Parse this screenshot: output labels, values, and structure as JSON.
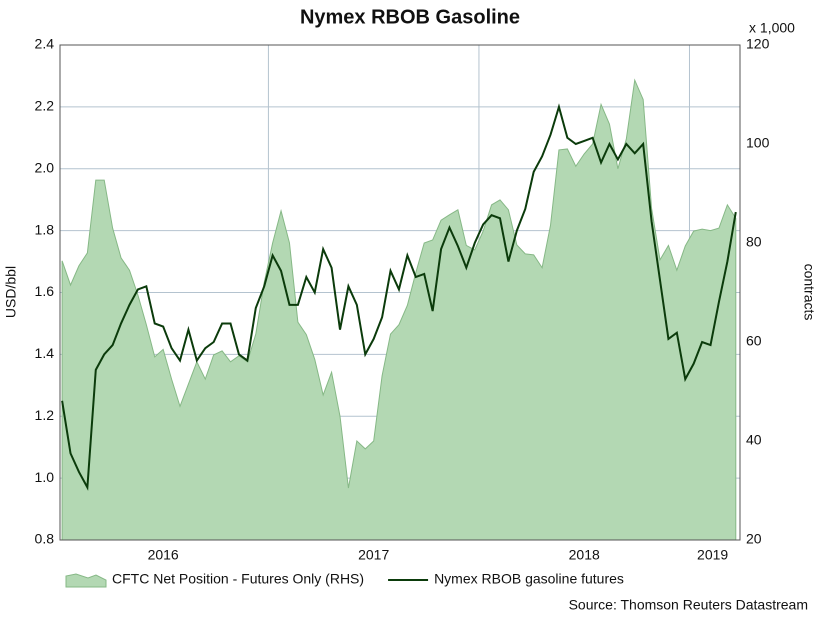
{
  "chart_data": {
    "type": "line",
    "title": "Nymex RBOB Gasoline",
    "ylabel": "USD/bbl",
    "y2label": "contracts",
    "y2unit": "x 1,000",
    "source": "Source: Thomson Reuters Datastream",
    "x": [
      2016.02,
      2016.06,
      2016.1,
      2016.14,
      2016.18,
      2016.22,
      2016.26,
      2016.3,
      2016.34,
      2016.38,
      2016.42,
      2016.46,
      2016.5,
      2016.54,
      2016.58,
      2016.62,
      2016.66,
      2016.7,
      2016.74,
      2016.78,
      2016.82,
      2016.86,
      2016.9,
      2016.94,
      2016.98,
      2017.02,
      2017.06,
      2017.1,
      2017.14,
      2017.18,
      2017.22,
      2017.26,
      2017.3,
      2017.34,
      2017.38,
      2017.42,
      2017.46,
      2017.5,
      2017.54,
      2017.58,
      2017.62,
      2017.66,
      2017.7,
      2017.74,
      2017.78,
      2017.82,
      2017.86,
      2017.9,
      2017.94,
      2017.98,
      2018.02,
      2018.06,
      2018.1,
      2018.14,
      2018.18,
      2018.22,
      2018.26,
      2018.3,
      2018.34,
      2018.38,
      2018.42,
      2018.46,
      2018.5,
      2018.54,
      2018.58,
      2018.62,
      2018.66,
      2018.7,
      2018.74,
      2018.78,
      2018.82,
      2018.86,
      2018.9,
      2018.94,
      2018.98,
      2019.02,
      2019.06,
      2019.1,
      2019.14,
      2019.18,
      2019.22
    ],
    "series": [
      {
        "name": "CFTC Net Position - Futures Only (RHS)",
        "type": "area",
        "axis": "y2",
        "color": "#b3d8b3",
        "edge": "#86b886",
        "values": [
          76.4,
          71.5,
          75.4,
          78,
          92.7,
          92.7,
          83,
          77,
          74.5,
          69.5,
          63.5,
          57,
          58.5,
          52.5,
          47,
          51.5,
          56,
          52.5,
          57.4,
          58.2,
          56,
          57.2,
          56,
          61.6,
          72,
          80,
          86.5,
          80,
          64,
          61.5,
          56.5,
          49.3,
          53.9,
          45,
          30.5,
          40,
          38.4,
          40,
          53.2,
          61.6,
          63.5,
          67.4,
          74,
          80,
          80.6,
          84.6,
          85.7,
          86.7,
          79.5,
          78.6,
          82.4,
          87.7,
          88.7,
          86.7,
          79.6,
          77.8,
          77.6,
          75,
          83.6,
          98.8,
          99,
          95.5,
          98,
          100,
          108,
          104,
          95,
          101,
          112.9,
          109,
          87,
          76.6,
          79.5,
          74.5,
          79.4,
          82.4,
          82.8,
          82.5,
          83,
          87.7,
          85
        ]
      },
      {
        "name": "Nymex RBOB gasoline futures",
        "type": "line",
        "axis": "y",
        "color": "#0b3b0b",
        "values": [
          1.25,
          1.08,
          1.02,
          0.97,
          1.35,
          1.4,
          1.43,
          1.5,
          1.56,
          1.61,
          1.62,
          1.5,
          1.49,
          1.42,
          1.38,
          1.48,
          1.38,
          1.42,
          1.44,
          1.5,
          1.5,
          1.4,
          1.38,
          1.55,
          1.62,
          1.72,
          1.67,
          1.56,
          1.56,
          1.65,
          1.6,
          1.74,
          1.68,
          1.48,
          1.62,
          1.56,
          1.4,
          1.45,
          1.52,
          1.67,
          1.61,
          1.72,
          1.65,
          1.66,
          1.54,
          1.74,
          1.81,
          1.75,
          1.68,
          1.76,
          1.82,
          1.85,
          1.84,
          1.7,
          1.8,
          1.87,
          1.99,
          2.04,
          2.11,
          2.2,
          2.1,
          2.08,
          2.09,
          2.1,
          2.02,
          2.08,
          2.03,
          2.08,
          2.05,
          2.08,
          1.83,
          1.64,
          1.45,
          1.47,
          1.32,
          1.37,
          1.44,
          1.43,
          1.57,
          1.7,
          1.86
        ]
      }
    ],
    "xlim": [
      2016.01,
      2019.24
    ],
    "xticks": [
      {
        "value": 2016.5,
        "label": "2016"
      },
      {
        "value": 2017.5,
        "label": "2017"
      },
      {
        "value": 2018.5,
        "label": "2018"
      },
      {
        "value": 2019.11,
        "label": "2019"
      }
    ],
    "xgrid": [
      2017,
      2018,
      2019
    ],
    "ylim": [
      0.8,
      2.4
    ],
    "yticks": [
      {
        "value": 0.8,
        "label": "0.8"
      },
      {
        "value": 1.0,
        "label": "1.0"
      },
      1.2,
      1.4,
      1.6,
      1.8,
      {
        "value": 2.0,
        "label": "2.0"
      },
      2.2,
      2.4
    ],
    "y2lim": [
      20,
      120
    ],
    "y2ticks": [
      20,
      40,
      60,
      80,
      100,
      120
    ],
    "grid": true,
    "legend": "bottom"
  }
}
